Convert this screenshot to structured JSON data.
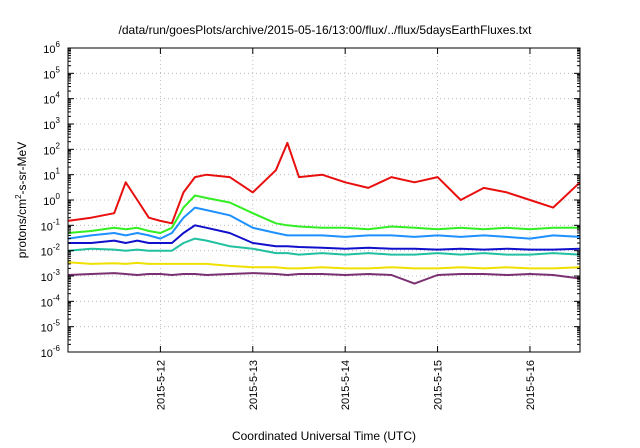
{
  "chart_data": {
    "type": "line",
    "title": "/data/run/goesPlots/archive/2015-05-16/13:00/flux/../flux/5daysEarthFluxes.txt",
    "xlabel": "Coordinated Universal Time (UTC)",
    "ylabel": "protons/cm²-s-sr-MeV",
    "ylabel_parts": {
      "pre": "protons/cm",
      "sup": "2",
      "post": "-s-sr-MeV"
    },
    "yscale": "log",
    "ylim": [
      1e-06,
      1000000.0
    ],
    "xlim": [
      "2015-05-11 00:00",
      "2015-05-16 13:00"
    ],
    "grid": true,
    "x_ticks": [
      {
        "label": "2015-5-12",
        "value": "2015-05-12 00:00"
      },
      {
        "label": "2015-5-13",
        "value": "2015-05-13 00:00"
      },
      {
        "label": "2015-5-14",
        "value": "2015-05-14 00:00"
      },
      {
        "label": "2015-5-15",
        "value": "2015-05-15 00:00"
      },
      {
        "label": "2015-5-16",
        "value": "2015-05-16 00:00"
      }
    ],
    "y_ticks": [
      {
        "base": "10",
        "exp": "-6",
        "value": -6
      },
      {
        "base": "10",
        "exp": "-5",
        "value": -5
      },
      {
        "base": "10",
        "exp": "-4",
        "value": -4
      },
      {
        "base": "10",
        "exp": "-3",
        "value": -3
      },
      {
        "base": "10",
        "exp": "-2",
        "value": -2
      },
      {
        "base": "10",
        "exp": "-1",
        "value": -1
      },
      {
        "base": "10",
        "exp": "0",
        "value": 0
      },
      {
        "base": "10",
        "exp": "1",
        "value": 1
      },
      {
        "base": "10",
        "exp": "2",
        "value": 2
      },
      {
        "base": "10",
        "exp": "3",
        "value": 3
      },
      {
        "base": "10",
        "exp": "4",
        "value": 4
      },
      {
        "base": "10",
        "exp": "5",
        "value": 5
      },
      {
        "base": "10",
        "exp": "6",
        "value": 6
      }
    ],
    "x_times": [
      "2015-05-11 00:00",
      "2015-05-11 06:00",
      "2015-05-11 12:00",
      "2015-05-11 15:00",
      "2015-05-11 18:00",
      "2015-05-11 21:00",
      "2015-05-12 00:00",
      "2015-05-12 03:00",
      "2015-05-12 06:00",
      "2015-05-12 09:00",
      "2015-05-12 12:00",
      "2015-05-12 18:00",
      "2015-05-13 00:00",
      "2015-05-13 06:00",
      "2015-05-13 09:00",
      "2015-05-13 12:00",
      "2015-05-13 18:00",
      "2015-05-14 00:00",
      "2015-05-14 06:00",
      "2015-05-14 12:00",
      "2015-05-14 18:00",
      "2015-05-15 00:00",
      "2015-05-15 06:00",
      "2015-05-15 12:00",
      "2015-05-15 18:00",
      "2015-05-16 00:00",
      "2015-05-16 06:00",
      "2015-05-16 13:00"
    ],
    "series": [
      {
        "color": "#e8100e",
        "values": [
          0.15,
          0.2,
          0.3,
          5,
          1,
          0.2,
          0.15,
          0.12,
          2,
          8,
          10,
          8,
          2,
          15,
          180,
          8,
          10,
          5,
          3,
          8,
          5,
          8,
          1,
          3,
          2,
          1,
          0.5,
          5
        ]
      },
      {
        "color": "#33ee22",
        "values": [
          0.05,
          0.06,
          0.08,
          0.07,
          0.08,
          0.06,
          0.05,
          0.08,
          0.5,
          1.5,
          1.2,
          0.8,
          0.3,
          0.12,
          0.1,
          0.09,
          0.08,
          0.08,
          0.07,
          0.09,
          0.08,
          0.07,
          0.08,
          0.07,
          0.08,
          0.07,
          0.08,
          0.08
        ]
      },
      {
        "color": "#1e90ff",
        "values": [
          0.03,
          0.04,
          0.05,
          0.04,
          0.05,
          0.04,
          0.03,
          0.05,
          0.2,
          0.5,
          0.4,
          0.25,
          0.08,
          0.05,
          0.04,
          0.04,
          0.04,
          0.035,
          0.04,
          0.04,
          0.035,
          0.04,
          0.035,
          0.04,
          0.035,
          0.03,
          0.04,
          0.035
        ]
      },
      {
        "color": "#1010cc",
        "values": [
          0.02,
          0.02,
          0.025,
          0.02,
          0.025,
          0.02,
          0.02,
          0.02,
          0.05,
          0.1,
          0.08,
          0.05,
          0.02,
          0.015,
          0.015,
          0.014,
          0.013,
          0.012,
          0.013,
          0.012,
          0.012,
          0.011,
          0.012,
          0.011,
          0.012,
          0.011,
          0.011,
          0.012
        ]
      },
      {
        "color": "#20c0a0",
        "values": [
          0.01,
          0.012,
          0.011,
          0.01,
          0.011,
          0.01,
          0.01,
          0.01,
          0.02,
          0.03,
          0.025,
          0.015,
          0.012,
          0.008,
          0.008,
          0.007,
          0.008,
          0.007,
          0.008,
          0.007,
          0.007,
          0.008,
          0.007,
          0.008,
          0.007,
          0.007,
          0.008,
          0.007
        ]
      },
      {
        "color": "#f0e000",
        "values": [
          0.0035,
          0.003,
          0.0032,
          0.003,
          0.0033,
          0.003,
          0.003,
          0.003,
          0.003,
          0.003,
          0.003,
          0.0025,
          0.0022,
          0.0022,
          0.002,
          0.002,
          0.0022,
          0.002,
          0.002,
          0.0022,
          0.002,
          0.002,
          0.0022,
          0.002,
          0.0022,
          0.002,
          0.002,
          0.0022
        ]
      },
      {
        "color": "#7a3070",
        "values": [
          0.0011,
          0.0012,
          0.0013,
          0.0012,
          0.0011,
          0.0012,
          0.0012,
          0.0011,
          0.0012,
          0.0012,
          0.0011,
          0.0012,
          0.0013,
          0.0012,
          0.0011,
          0.0012,
          0.0012,
          0.0011,
          0.0012,
          0.0011,
          0.0005,
          0.0011,
          0.0012,
          0.0012,
          0.0011,
          0.0012,
          0.0011,
          0.0008
        ]
      }
    ]
  }
}
